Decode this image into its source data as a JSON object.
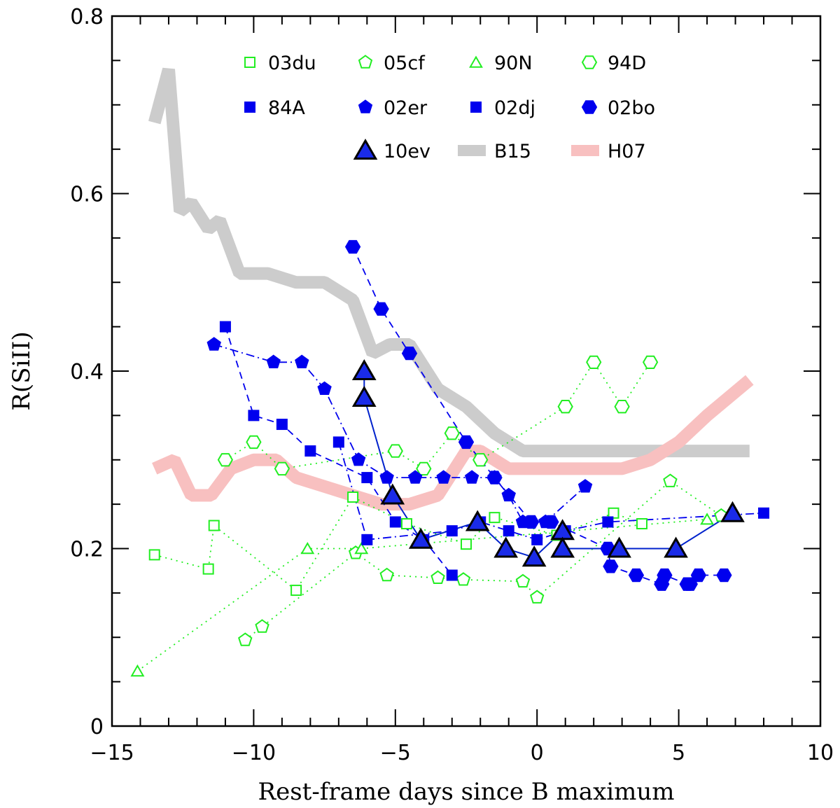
{
  "chart_data": {
    "type": "line",
    "xlabel": "Rest-frame days since B maximum",
    "ylabel": "R(SiII)",
    "xlim": [
      -15,
      10
    ],
    "ylim": [
      0,
      0.8
    ],
    "x_ticks": [
      -15,
      -10,
      -5,
      0,
      5,
      10
    ],
    "x_tick_labels": [
      "−15",
      "−10",
      "−5",
      "0",
      "5",
      "10"
    ],
    "y_ticks": [
      0,
      0.2,
      0.4,
      0.6,
      0.8
    ],
    "y_tick_labels": [
      "0",
      "0.2",
      "0.4",
      "0.6",
      "0.8"
    ],
    "colors": {
      "green": "#22ee22",
      "blue": "#0000ee",
      "gray": "#cccccc",
      "pink": "#f8c0c0",
      "dark_blue": "#0022cc"
    },
    "series": [
      {
        "name": "B15",
        "style": "band",
        "color": "#cccccc",
        "x": [
          -13.5,
          -13,
          -12.6,
          -12.2,
          -11.6,
          -11.2,
          -10.5,
          -9.5,
          -8.5,
          -7.5,
          -6.5,
          -5.8,
          -5.2,
          -4.5,
          -3.5,
          -2.5,
          -1.5,
          -0.5,
          0,
          0.5,
          1.5,
          2.5,
          3.5,
          4.5,
          5.5,
          6.5,
          7.5
        ],
        "y": [
          0.68,
          0.74,
          0.58,
          0.59,
          0.56,
          0.57,
          0.51,
          0.51,
          0.5,
          0.5,
          0.48,
          0.42,
          0.43,
          0.43,
          0.38,
          0.36,
          0.33,
          0.31,
          0.31,
          0.31,
          0.31,
          0.31,
          0.31,
          0.31,
          0.31,
          0.31,
          0.31
        ],
        "hidden_labels": true
      },
      {
        "name": "H07",
        "style": "band",
        "color": "#f8c0c0",
        "x": [
          -13.5,
          -12.8,
          -12.2,
          -11.5,
          -10.8,
          -10,
          -9.2,
          -8.5,
          -7.5,
          -6.5,
          -5.5,
          -4.5,
          -3.5,
          -2.5,
          -2,
          -1.5,
          -1,
          0,
          1,
          2,
          3,
          4,
          5,
          6,
          7.5
        ],
        "y": [
          0.29,
          0.3,
          0.26,
          0.26,
          0.29,
          0.3,
          0.3,
          0.28,
          0.27,
          0.26,
          0.25,
          0.25,
          0.26,
          0.31,
          0.31,
          0.3,
          0.29,
          0.29,
          0.29,
          0.29,
          0.29,
          0.3,
          0.32,
          0.35,
          0.39
        ]
      },
      {
        "name": "03du",
        "marker": "square-open",
        "color": "#22ee22",
        "line": "dotted",
        "x": [
          -13.5,
          -11.6,
          -11.4,
          -8.5,
          -6.5,
          -4.6,
          -2.5,
          -1.5,
          0.7,
          2.7,
          3.7
        ],
        "y": [
          0.193,
          0.177,
          0.226,
          0.153,
          0.258,
          0.228,
          0.205,
          0.235,
          0.215,
          0.24,
          0.228
        ]
      },
      {
        "name": "05cf",
        "marker": "pentagon-open",
        "color": "#22ee22",
        "line": "dotted",
        "x": [
          -10.3,
          -9.7,
          -6.4,
          -5.3,
          -3.5,
          -2.6,
          -0.5,
          0,
          4.7,
          6.5
        ],
        "y": [
          0.097,
          0.112,
          0.195,
          0.17,
          0.167,
          0.165,
          0.163,
          0.145,
          0.276,
          0.237
        ]
      },
      {
        "name": "90N",
        "marker": "triangle-open",
        "color": "#22ee22",
        "line": "dotted",
        "x": [
          -14.1,
          -8.1,
          -6.2,
          6.0
        ],
        "y": [
          0.062,
          0.2,
          0.2,
          0.233
        ]
      },
      {
        "name": "94D",
        "marker": "hexagon-open",
        "color": "#22ee22",
        "line": "dotted",
        "x": [
          -11,
          -10,
          -9,
          -5,
          -4,
          -3,
          -2,
          1,
          2,
          3,
          4
        ],
        "y": [
          0.3,
          0.32,
          0.29,
          0.31,
          0.29,
          0.33,
          0.3,
          0.36,
          0.41,
          0.36,
          0.41
        ]
      },
      {
        "name": "84A",
        "marker": "square-filled",
        "color": "#0000ee",
        "line": "dashed",
        "x": [
          -11,
          -10,
          -9,
          -8,
          -6,
          -5,
          -4,
          -3
        ],
        "y": [
          0.45,
          0.35,
          0.34,
          0.31,
          0.28,
          0.23,
          0.21,
          0.17
        ]
      },
      {
        "name": "02er",
        "marker": "pentagon-filled",
        "color": "#0000ee",
        "line": "dashdot",
        "x": [
          -11.4,
          -9.3,
          -8.3,
          -7.5,
          -6.3,
          -5.3,
          -4.3,
          -3.3,
          -2.3,
          -1.5,
          -1,
          -0.5,
          0.3,
          1.7
        ],
        "y": [
          0.43,
          0.41,
          0.41,
          0.38,
          0.3,
          0.28,
          0.28,
          0.28,
          0.28,
          0.28,
          0.26,
          0.23,
          0.23,
          0.27
        ]
      },
      {
        "name": "02dj",
        "marker": "square-filled",
        "color": "#0000ee",
        "line": "dashdot",
        "x": [
          -7,
          -6,
          -3,
          -2,
          -1,
          0,
          1,
          2.5,
          8
        ],
        "y": [
          0.32,
          0.21,
          0.22,
          0.23,
          0.22,
          0.21,
          0.22,
          0.23,
          0.24
        ]
      },
      {
        "name": "02bo",
        "marker": "hexagon-filled",
        "color": "#0000ee",
        "line": "dashed",
        "x": [
          -6.5,
          -5.5,
          -4.5,
          -2.5,
          -1.5,
          -0.2,
          0.5,
          2.5,
          2.6,
          3.5,
          4.4,
          4.5,
          5.3,
          5.4,
          5.7,
          6.6
        ],
        "y": [
          0.54,
          0.47,
          0.42,
          0.32,
          0.28,
          0.23,
          0.23,
          0.2,
          0.18,
          0.17,
          0.16,
          0.17,
          0.16,
          0.16,
          0.17,
          0.17
        ]
      },
      {
        "name": "10ev",
        "marker": "triangle-big",
        "color": "#0022cc",
        "line": "solid",
        "x": [
          -6.1,
          -6.1,
          -5.1,
          -4.1,
          -2.1,
          -1.1,
          -0.1,
          0.9,
          0.9,
          2.9,
          4.9,
          6.9
        ],
        "y": [
          0.4,
          0.37,
          0.26,
          0.21,
          0.23,
          0.2,
          0.19,
          0.22,
          0.2,
          0.2,
          0.2,
          0.24
        ]
      }
    ],
    "legend": [
      {
        "label": "03du",
        "marker": "square-open"
      },
      {
        "label": "05cf",
        "marker": "pentagon-open"
      },
      {
        "label": "90N",
        "marker": "triangle-open"
      },
      {
        "label": "94D",
        "marker": "hexagon-open"
      },
      {
        "label": "84A",
        "marker": "square-filled"
      },
      {
        "label": "02er",
        "marker": "pentagon-filled"
      },
      {
        "label": "02dj",
        "marker": "square-filled"
      },
      {
        "label": "02bo",
        "marker": "hexagon-filled"
      },
      {
        "label": "10ev",
        "marker": "triangle-big"
      },
      {
        "label": "B15",
        "marker": "band-gray"
      },
      {
        "label": "H07",
        "marker": "band-pink"
      }
    ],
    "legend_position": "top"
  }
}
